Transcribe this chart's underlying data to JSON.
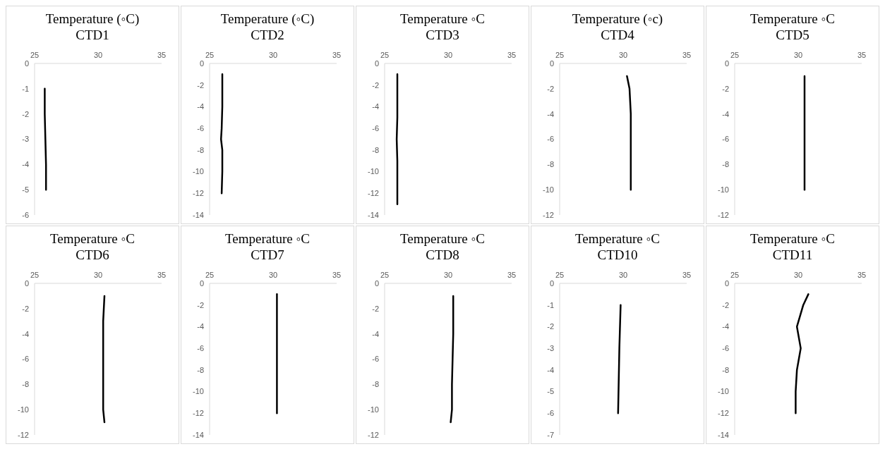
{
  "chart_data": [
    {
      "type": "line",
      "title": "Temperature (◦C)",
      "subtitle": "CTD1",
      "xlim": [
        25,
        35
      ],
      "xticks": [
        25,
        30,
        35
      ],
      "ylim": [
        -6,
        0
      ],
      "yticks": [
        0,
        -1,
        -2,
        -3,
        -4,
        -5,
        -6
      ],
      "series": [
        {
          "color": "#000000",
          "x": [
            25.8,
            25.8,
            25.85,
            25.9,
            25.9
          ],
          "values": [
            -1,
            -2,
            -3,
            -4,
            -5
          ]
        }
      ]
    },
    {
      "type": "line",
      "title": "Temperature (◦C)",
      "subtitle": "CTD2",
      "xlim": [
        25,
        35
      ],
      "xticks": [
        25,
        30,
        35
      ],
      "ylim": [
        -14,
        0
      ],
      "yticks": [
        0,
        -2,
        -4,
        -6,
        -8,
        -10,
        -12,
        -14
      ],
      "series": [
        {
          "color": "#000000",
          "x": [
            26.0,
            26.0,
            26.0,
            25.95,
            25.9,
            26.0,
            26.0,
            25.95
          ],
          "values": [
            -1,
            -2,
            -4,
            -6,
            -7,
            -8,
            -10,
            -12
          ]
        }
      ]
    },
    {
      "type": "line",
      "title": "Temperature ◦C",
      "subtitle": "CTD3",
      "xlim": [
        25,
        35
      ],
      "xticks": [
        25,
        30,
        35
      ],
      "ylim": [
        -14,
        0
      ],
      "yticks": [
        0,
        -2,
        -4,
        -6,
        -8,
        -10,
        -12,
        -14
      ],
      "series": [
        {
          "color": "#000000",
          "x": [
            26.0,
            26.0,
            26.0,
            25.95,
            26.0,
            26.0,
            26.0
          ],
          "values": [
            -1,
            -3,
            -5,
            -7,
            -9,
            -11,
            -13
          ]
        }
      ]
    },
    {
      "type": "line",
      "title": "Temperature (◦c)",
      "subtitle": "CTD4",
      "xlim": [
        25,
        35
      ],
      "xticks": [
        25,
        30,
        35
      ],
      "ylim": [
        -12,
        0
      ],
      "yticks": [
        0,
        -2,
        -4,
        -6,
        -8,
        -10,
        -12
      ],
      "series": [
        {
          "color": "#000000",
          "x": [
            30.3,
            30.5,
            30.6,
            30.6,
            30.6,
            30.6
          ],
          "values": [
            -1,
            -2,
            -4,
            -6,
            -8,
            -10
          ]
        }
      ]
    },
    {
      "type": "line",
      "title": "Temperature ◦C",
      "subtitle": "CTD5",
      "xlim": [
        25,
        35
      ],
      "xticks": [
        25,
        30,
        35
      ],
      "ylim": [
        -12,
        0
      ],
      "yticks": [
        0,
        -2,
        -4,
        -6,
        -8,
        -10,
        -12
      ],
      "series": [
        {
          "color": "#000000",
          "x": [
            30.5,
            30.5,
            30.5,
            30.5
          ],
          "values": [
            -1,
            -4,
            -7,
            -10
          ]
        }
      ]
    },
    {
      "type": "line",
      "title": "Temperature ◦C",
      "subtitle": "CTD6",
      "xlim": [
        25,
        35
      ],
      "xticks": [
        25,
        30,
        35
      ],
      "ylim": [
        -12,
        0
      ],
      "yticks": [
        0,
        -2,
        -4,
        -6,
        -8,
        -10,
        -12
      ],
      "series": [
        {
          "color": "#000000",
          "x": [
            30.5,
            30.4,
            30.4,
            30.4,
            30.4,
            30.5
          ],
          "values": [
            -1,
            -3,
            -6,
            -9,
            -10,
            -11
          ]
        }
      ]
    },
    {
      "type": "line",
      "title": "Temperature ◦C",
      "subtitle": "CTD7",
      "xlim": [
        25,
        35
      ],
      "xticks": [
        25,
        30,
        35
      ],
      "ylim": [
        -14,
        0
      ],
      "yticks": [
        0,
        -2,
        -4,
        -6,
        -8,
        -10,
        -12,
        -14
      ],
      "series": [
        {
          "color": "#000000",
          "x": [
            30.3,
            30.3,
            30.3
          ],
          "values": [
            -1,
            -6,
            -12
          ]
        }
      ]
    },
    {
      "type": "line",
      "title": "Temperature ◦C",
      "subtitle": "CTD8",
      "xlim": [
        25,
        35
      ],
      "xticks": [
        25,
        30,
        35
      ],
      "ylim": [
        -12,
        0
      ],
      "yticks": [
        0,
        -2,
        -4,
        -6,
        -8,
        -10,
        -12
      ],
      "series": [
        {
          "color": "#000000",
          "x": [
            30.4,
            30.4,
            30.3,
            30.3,
            30.2
          ],
          "values": [
            -1,
            -4,
            -8,
            -10,
            -11
          ]
        }
      ]
    },
    {
      "type": "line",
      "title": "Temperature ◦C",
      "subtitle": "CTD10",
      "xlim": [
        25,
        35
      ],
      "xticks": [
        25,
        30,
        35
      ],
      "ylim": [
        -7,
        0
      ],
      "yticks": [
        0,
        -1,
        -2,
        -3,
        -4,
        -5,
        -6,
        -7
      ],
      "series": [
        {
          "color": "#000000",
          "x": [
            29.8,
            29.7,
            29.6
          ],
          "values": [
            -1,
            -3,
            -6
          ]
        }
      ]
    },
    {
      "type": "line",
      "title": "Temperature ◦C",
      "subtitle": "CTD11",
      "xlim": [
        25,
        35
      ],
      "xticks": [
        25,
        30,
        35
      ],
      "ylim": [
        -14,
        0
      ],
      "yticks": [
        0,
        -2,
        -4,
        -6,
        -8,
        -10,
        -12,
        -14
      ],
      "series": [
        {
          "color": "#000000",
          "x": [
            30.8,
            30.4,
            29.9,
            30.2,
            29.9,
            29.8,
            29.8
          ],
          "values": [
            -1,
            -2,
            -4,
            -6,
            -8,
            -10,
            -12
          ]
        }
      ]
    }
  ]
}
